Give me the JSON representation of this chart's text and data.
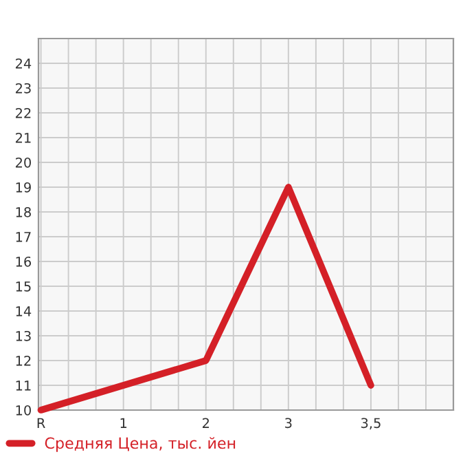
{
  "chart_data": {
    "type": "line",
    "categories": [
      "R",
      "1",
      "2",
      "3",
      "3,5"
    ],
    "series": [
      {
        "name": "Средняя Цена, тыс. йен",
        "color": "#d42027",
        "values": [
          10,
          11,
          12,
          19,
          11
        ]
      }
    ],
    "ylim": [
      10,
      25
    ],
    "yticks": [
      10,
      11,
      12,
      13,
      14,
      15,
      16,
      17,
      18,
      19,
      20,
      21,
      22,
      23,
      24
    ],
    "grid": true,
    "legend": "bottom left",
    "marker": "none",
    "line_style": "solid"
  }
}
